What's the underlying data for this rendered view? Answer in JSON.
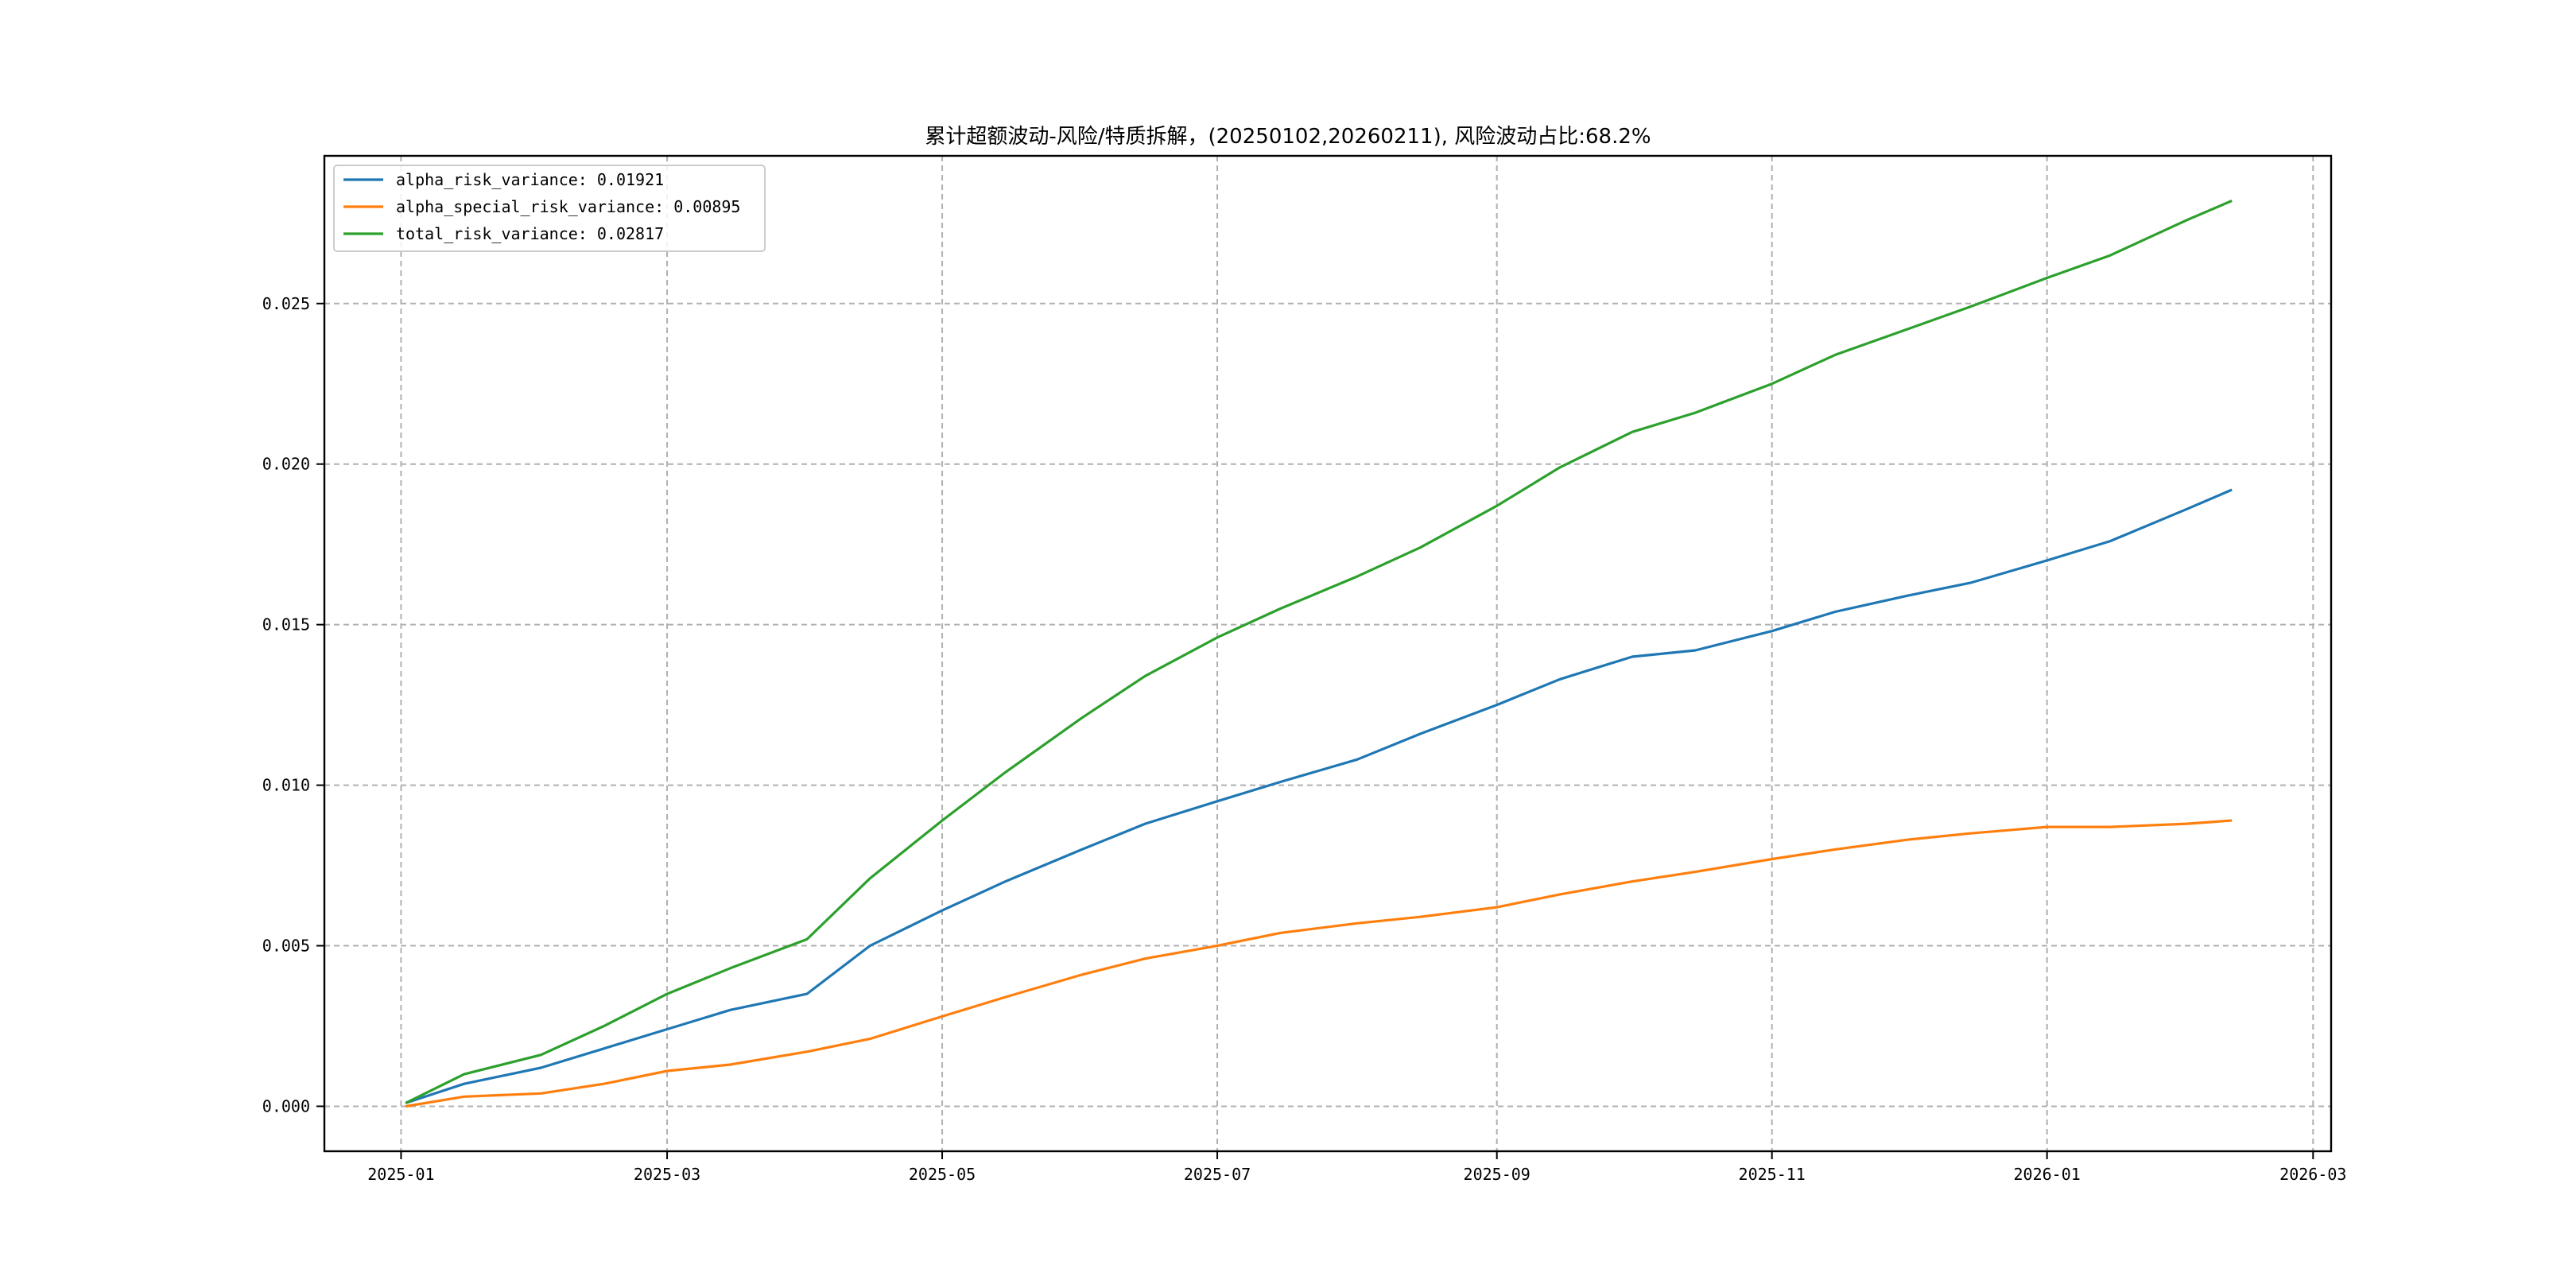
{
  "chart_data": {
    "type": "line",
    "title": "累计超额波动-风险/特质拆解，(20250102,20260211), 风险波动占比:68.2%",
    "xlabel": "",
    "ylabel": "",
    "x_ticks": [
      "2025-01",
      "2025-03",
      "2025-05",
      "2025-07",
      "2025-09",
      "2025-11",
      "2026-01",
      "2026-03"
    ],
    "x_tick_dates": [
      "2025-01-01",
      "2025-03-01",
      "2025-05-01",
      "2025-07-01",
      "2025-09-01",
      "2025-11-01",
      "2026-01-01",
      "2026-03-01"
    ],
    "xlim": [
      "2024-12-15",
      "2026-03-05"
    ],
    "y_ticks": [
      "0.000",
      "0.005",
      "0.010",
      "0.015",
      "0.020",
      "0.025"
    ],
    "y_tick_values": [
      0.0,
      0.005,
      0.01,
      0.015,
      0.02,
      0.025
    ],
    "ylim": [
      -0.0014,
      0.0296
    ],
    "grid": true,
    "legend_position": "top-left",
    "x": [
      "2025-01-02",
      "2025-01-15",
      "2025-02-01",
      "2025-02-15",
      "2025-03-01",
      "2025-03-15",
      "2025-04-01",
      "2025-04-15",
      "2025-05-01",
      "2025-05-15",
      "2025-06-01",
      "2025-06-15",
      "2025-07-01",
      "2025-07-15",
      "2025-08-01",
      "2025-08-15",
      "2025-09-01",
      "2025-09-15",
      "2025-10-01",
      "2025-10-15",
      "2025-11-01",
      "2025-11-15",
      "2025-12-01",
      "2025-12-15",
      "2026-01-01",
      "2026-01-15",
      "2026-02-01",
      "2026-02-11"
    ],
    "series": [
      {
        "name": "alpha_risk_variance: 0.01921",
        "color": "#1f77b4",
        "values": [
          0.0001,
          0.0007,
          0.0012,
          0.0018,
          0.0024,
          0.003,
          0.0035,
          0.005,
          0.0061,
          0.007,
          0.008,
          0.0088,
          0.0095,
          0.0101,
          0.0108,
          0.0116,
          0.0125,
          0.0133,
          0.014,
          0.0142,
          0.0148,
          0.0154,
          0.0159,
          0.0163,
          0.017,
          0.0176,
          0.0186,
          0.0192
        ]
      },
      {
        "name": "alpha_special_risk_variance: 0.00895",
        "color": "#ff7f0e",
        "values": [
          0.0,
          0.0003,
          0.0004,
          0.0007,
          0.0011,
          0.0013,
          0.0017,
          0.0021,
          0.0028,
          0.0034,
          0.0041,
          0.0046,
          0.005,
          0.0054,
          0.0057,
          0.0059,
          0.0062,
          0.0066,
          0.007,
          0.0073,
          0.0077,
          0.008,
          0.0083,
          0.0085,
          0.0087,
          0.0087,
          0.0088,
          0.0089
        ]
      },
      {
        "name": "total_risk_variance: 0.02817",
        "color": "#2ca02c",
        "values": [
          0.0001,
          0.001,
          0.0016,
          0.0025,
          0.0035,
          0.0043,
          0.0052,
          0.0071,
          0.0089,
          0.0104,
          0.0121,
          0.0134,
          0.0146,
          0.0155,
          0.0165,
          0.0174,
          0.0187,
          0.0199,
          0.021,
          0.0216,
          0.0225,
          0.0234,
          0.0242,
          0.0249,
          0.0258,
          0.0265,
          0.0276,
          0.0282
        ]
      }
    ]
  }
}
